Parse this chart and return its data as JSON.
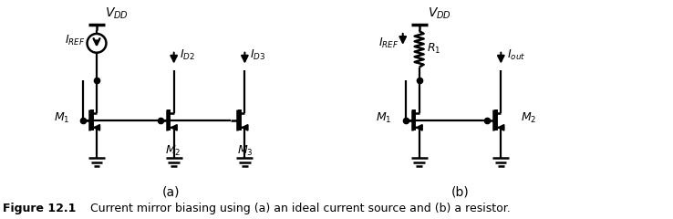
{
  "fig_width": 7.38,
  "fig_height": 2.4,
  "dpi": 100,
  "background_color": "#ffffff",
  "caption_bold": "Figure 12.1",
  "caption_text": "    Current mirror biasing using (a) an ideal current source and (b) a resistor.",
  "label_a": "(a)",
  "label_b": "(b)",
  "VDD_label": "$\\mathit{V}_{DD}$",
  "IREF_label": "$\\mathit{I}_{REF}$",
  "ID2_label": "$\\mathit{I}_{D2}$",
  "ID3_label": "$\\mathit{I}_{D3}$",
  "M1_label": "$\\mathit{M}_1$",
  "M2_label_a": "$\\mathit{M}_2$",
  "M3_label": "$\\mathit{M}_3$",
  "R1_label": "$\\mathit{R}_1$",
  "Iout_label": "$\\mathit{I}_{out}$",
  "M1b_label": "$\\mathit{M}_1$",
  "M2b_label": "$\\mathit{M}_2$"
}
